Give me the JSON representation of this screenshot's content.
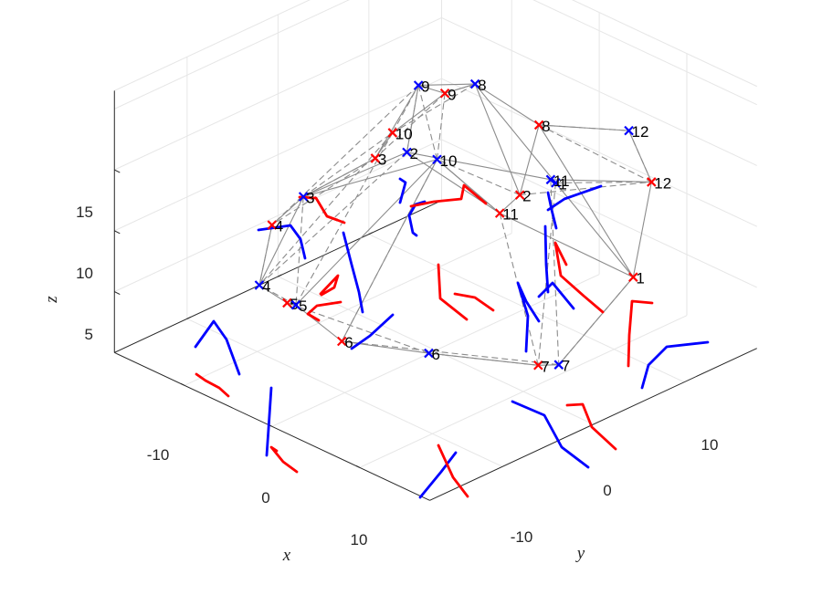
{
  "chart_data": {
    "type": "scatter",
    "projection": "3d",
    "title": "",
    "xlabel": "x",
    "ylabel": "y",
    "zlabel": "z",
    "xlim": [
      -18,
      18
    ],
    "ylim": [
      -18,
      18
    ],
    "zlim": [
      0,
      16
    ],
    "xticks": [
      "-10",
      "0",
      "10"
    ],
    "yticks": [
      "-10",
      "0",
      "10"
    ],
    "zticks": [
      "5",
      "10",
      "15"
    ],
    "grid": true,
    "colors": {
      "red": "#ff0000",
      "blue": "#0000ff",
      "edge": "#8c8c8c",
      "axis": "#262626",
      "grid": "#e6e6e6"
    },
    "series": [
      {
        "color": "red",
        "marker": "x",
        "points": [
          {
            "label": "1",
            "x": -9.5,
            "y": 12.7,
            "z": 7.0
          },
          {
            "label": "2",
            "x": -5.6,
            "y": 3.8,
            "z": 12.1
          },
          {
            "label": "3",
            "x": -2.8,
            "y": -9.8,
            "z": 11.5
          },
          {
            "label": "4",
            "x": 2.3,
            "y": -16.3,
            "z": 5.6
          },
          {
            "label": "5",
            "x": 9.5,
            "y": -7.1,
            "z": 4.8
          },
          {
            "label": "6",
            "x": 11.0,
            "y": 0.7,
            "z": 4.8
          },
          {
            "label": "7",
            "x": 2.4,
            "y": 14.2,
            "z": 4.4
          },
          {
            "label": "8",
            "x": -10.6,
            "y": 0.8,
            "z": 15.1
          },
          {
            "label": "9",
            "x": -12.0,
            "y": -11.4,
            "z": 13.1
          },
          {
            "label": "10",
            "x": -4.9,
            "y": -10.0,
            "z": 12.8
          },
          {
            "label": "11",
            "x": -3.2,
            "y": 4.0,
            "z": 11.5
          },
          {
            "label": "12",
            "x": -14.4,
            "y": 9.7,
            "z": 12.1
          }
        ]
      },
      {
        "color": "blue",
        "marker": "x",
        "points": [
          {
            "label": "1",
            "x": -8.0,
            "y": 5.4,
            "z": 12.8
          },
          {
            "label": "2",
            "x": -3.1,
            "y": -6.5,
            "z": 13.0
          },
          {
            "label": "3",
            "x": 0.1,
            "y": -15.0,
            "z": 7.6
          },
          {
            "label": "4",
            "x": 8.8,
            "y": -11.0,
            "z": 4.7
          },
          {
            "label": "5",
            "x": 9.4,
            "y": -6.2,
            "z": 4.9
          },
          {
            "label": "6",
            "x": 7.6,
            "y": 7.1,
            "z": 4.8
          },
          {
            "label": "7",
            "x": 1.2,
            "y": 15.3,
            "z": 4.4
          },
          {
            "label": "8",
            "x": -10.6,
            "y": -6.5,
            "z": 16.0
          },
          {
            "label": "9",
            "x": -8.9,
            "y": -11.2,
            "z": 14.9
          },
          {
            "label": "10",
            "x": -4.2,
            "y": -4.2,
            "z": 12.8
          },
          {
            "label": "11",
            "x": -6.1,
            "y": 6.8,
            "z": 14.2
          },
          {
            "label": "12",
            "x": -14.9,
            "y": 6.6,
            "z": 15.1
          }
        ]
      }
    ],
    "trails": [
      [
        [
          465,
          221
        ],
        [
          455,
          224
        ],
        [
          448,
          236
        ],
        [
          452,
          255
        ],
        [
          456,
          258
        ]
      ],
      [
        [
          600,
          211
        ],
        [
          604,
          230
        ],
        [
          609,
          250
        ]
      ],
      [
        [
          600,
          230
        ],
        [
          618,
          218
        ],
        [
          658,
          204
        ]
      ],
      [
        [
          397,
          342
        ],
        [
          393,
          320
        ],
        [
          385,
          290
        ],
        [
          376,
          255
        ]
      ],
      [
        [
          334,
          283
        ],
        [
          329,
          262
        ],
        [
          318,
          247
        ],
        [
          283,
          252
        ]
      ],
      [
        [
          262,
          410
        ],
        [
          248,
          372
        ],
        [
          234,
          352
        ],
        [
          214,
          380
        ]
      ],
      [
        [
          292,
          499
        ],
        [
          294,
          470
        ],
        [
          297,
          425
        ]
      ],
      [
        [
          460,
          545
        ],
        [
          483,
          517
        ],
        [
          499,
          496
        ]
      ],
      [
        [
          644,
          512
        ],
        [
          615,
          490
        ],
        [
          596,
          455
        ],
        [
          561,
          440
        ]
      ],
      [
        [
          703,
          425
        ],
        [
          710,
          400
        ],
        [
          730,
          380
        ],
        [
          775,
          375
        ]
      ],
      [
        [
          430,
          345
        ],
        [
          405,
          368
        ],
        [
          385,
          382
        ]
      ],
      [
        [
          590,
          352
        ],
        [
          576,
          330
        ],
        [
          567,
          310
        ],
        [
          578,
          346
        ],
        [
          576,
          385
        ]
      ],
      [
        [
          590,
          325
        ],
        [
          605,
          310
        ],
        [
          628,
          338
        ]
      ],
      [
        [
          438,
          222
        ],
        [
          444,
          200
        ],
        [
          438,
          196
        ]
      ],
      [
        [
          597,
          248
        ],
        [
          598,
          290
        ],
        [
          600,
          320
        ]
      ]
    ],
    "trails_red": [
      [
        [
          450,
          226
        ],
        [
          475,
          221
        ],
        [
          505,
          218
        ],
        [
          508,
          203
        ],
        [
          532,
          223
        ]
      ],
      [
        [
          369,
          241
        ],
        [
          358,
          237
        ],
        [
          346,
          217
        ],
        [
          328,
          216
        ]
      ],
      [
        [
          369,
          241
        ],
        [
          377,
          244
        ]
      ],
      [
        [
          352,
          323
        ],
        [
          366,
          315
        ],
        [
          370,
          302
        ],
        [
          351,
          322
        ]
      ],
      [
        [
          349,
          351
        ],
        [
          337,
          344
        ],
        [
          347,
          335
        ],
        [
          373,
          331
        ]
      ],
      [
        [
          250,
          434
        ],
        [
          240,
          425
        ],
        [
          225,
          417
        ],
        [
          215,
          410
        ]
      ],
      [
        [
          325,
          517
        ],
        [
          310,
          506
        ],
        [
          297,
          490
        ],
        [
          303,
          494
        ]
      ],
      [
        [
          512,
          544
        ],
        [
          496,
          523
        ],
        [
          480,
          488
        ]
      ],
      [
        [
          674,
          492
        ],
        [
          648,
          468
        ],
        [
          638,
          443
        ],
        [
          621,
          444
        ]
      ],
      [
        [
          688,
          401
        ],
        [
          689,
          367
        ],
        [
          692,
          330
        ],
        [
          714,
          332
        ]
      ],
      [
        [
          511,
          350
        ],
        [
          482,
          327
        ],
        [
          480,
          290
        ]
      ],
      [
        [
          540,
          340
        ],
        [
          520,
          326
        ],
        [
          498,
          322
        ]
      ],
      [
        [
          620,
          290
        ],
        [
          608,
          266
        ],
        [
          614,
          302
        ],
        [
          640,
          325
        ],
        [
          660,
          342
        ]
      ]
    ]
  }
}
